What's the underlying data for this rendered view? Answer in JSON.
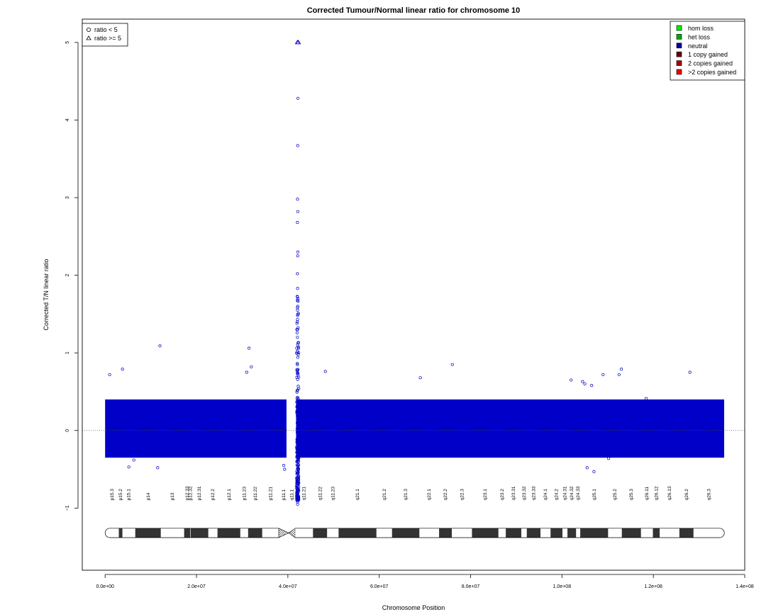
{
  "chart_data": {
    "type": "scatter",
    "title": "Corrected Tumour/Normal linear ratio for chromosome  10",
    "xlabel": "Chromosome Position",
    "ylabel": "Corrected T/N linear ratio",
    "xlim": [
      -5000000,
      140000000
    ],
    "ylim": [
      -1.8,
      5.3
    ],
    "x_ticks": [
      {
        "value": 0,
        "label": "0.0e+00"
      },
      {
        "value": 20000000,
        "label": "2.0e+07"
      },
      {
        "value": 40000000,
        "label": "4.0e+07"
      },
      {
        "value": 60000000,
        "label": "6.0e+07"
      },
      {
        "value": 80000000,
        "label": "8.0e+07"
      },
      {
        "value": 100000000,
        "label": "1.0e+08"
      },
      {
        "value": 120000000,
        "label": "1.2e+08"
      },
      {
        "value": 140000000,
        "label": "1.4e+08"
      }
    ],
    "y_ticks": [
      {
        "value": -1,
        "label": "−1"
      },
      {
        "value": 0,
        "label": "0"
      },
      {
        "value": 1,
        "label": "1"
      },
      {
        "value": 2,
        "label": "2"
      },
      {
        "value": 3,
        "label": "3"
      },
      {
        "value": 4,
        "label": "4"
      },
      {
        "value": 5,
        "label": "5"
      }
    ],
    "reference_line": {
      "y": 0,
      "style": "dotted"
    },
    "point_color": "#0000c8",
    "shape_legend": {
      "position": "top-left",
      "entries": [
        {
          "symbol": "circle",
          "label": "ratio < 5"
        },
        {
          "symbol": "triangle",
          "label": "ratio >= 5"
        }
      ]
    },
    "color_legend": {
      "position": "top-right",
      "entries": [
        {
          "label": "hom loss",
          "color": "#00ee00"
        },
        {
          "label": "het loss",
          "color": "#00aa00"
        },
        {
          "label": "neutral",
          "color": "#0000a0"
        },
        {
          "label": "1 copy gained",
          "color": "#660000"
        },
        {
          "label": "2 copies gained",
          "color": "#aa0000"
        },
        {
          "label": ">2 copies gained",
          "color": "#ee0000"
        }
      ]
    },
    "series": [
      {
        "segments": [
          {
            "x_start": 0,
            "x_end": 39700000,
            "median": 0.0,
            "lo": -0.35,
            "hi": 0.4
          },
          {
            "x_start": 41800000,
            "x_end": 135500000,
            "median": 0.0,
            "lo": -0.35,
            "hi": 0.4
          }
        ],
        "outliers": [
          {
            "x": 42300000,
            "y": 5.0,
            "symbol": "triangle"
          },
          {
            "x": 42100000,
            "y": 5.0,
            "symbol": "triangle"
          },
          {
            "x": 42200000,
            "y": 4.28
          },
          {
            "x": 42150000,
            "y": 3.67
          },
          {
            "x": 42120000,
            "y": 2.98
          },
          {
            "x": 42180000,
            "y": 2.82
          },
          {
            "x": 42090000,
            "y": 2.68
          },
          {
            "x": 42200000,
            "y": 2.3
          },
          {
            "x": 42150000,
            "y": 2.25
          },
          {
            "x": 42100000,
            "y": 2.02
          },
          {
            "x": 42130000,
            "y": 1.83
          },
          {
            "x": 42080000,
            "y": 1.72
          },
          {
            "x": 42160000,
            "y": 1.6
          },
          {
            "x": 42110000,
            "y": 1.55
          },
          {
            "x": 42140000,
            "y": 1.48
          },
          {
            "x": 42060000,
            "y": 1.4
          },
          {
            "x": 42120000,
            "y": 1.3
          },
          {
            "x": 42100000,
            "y": 1.2
          },
          {
            "x": 42150000,
            "y": 1.1
          },
          {
            "x": 42080000,
            "y": -0.75
          },
          {
            "x": 42100000,
            "y": -0.85
          },
          {
            "x": 42120000,
            "y": -0.92
          },
          {
            "x": 42130000,
            "y": -0.95
          },
          {
            "x": 12000000,
            "y": 1.09
          },
          {
            "x": 31500000,
            "y": 1.06
          },
          {
            "x": 31000000,
            "y": 0.75
          },
          {
            "x": 32000000,
            "y": 0.82
          },
          {
            "x": 1000000,
            "y": 0.72
          },
          {
            "x": 3800000,
            "y": 0.79
          },
          {
            "x": 76000000,
            "y": 0.85
          },
          {
            "x": 48200000,
            "y": 0.76
          },
          {
            "x": 113000000,
            "y": 0.79
          },
          {
            "x": 112500000,
            "y": 0.72
          },
          {
            "x": 109000000,
            "y": 0.72
          },
          {
            "x": 128000000,
            "y": 0.75
          },
          {
            "x": 69000000,
            "y": 0.68
          },
          {
            "x": 102000000,
            "y": 0.65
          },
          {
            "x": 104500000,
            "y": 0.63
          },
          {
            "x": 105000000,
            "y": 0.6
          },
          {
            "x": 106500000,
            "y": 0.58
          },
          {
            "x": 105500000,
            "y": -0.48
          },
          {
            "x": 107000000,
            "y": -0.53
          },
          {
            "x": 39300000,
            "y": -0.5
          },
          {
            "x": 39100000,
            "y": -0.45
          },
          {
            "x": 5200000,
            "y": -0.47
          },
          {
            "x": 11500000,
            "y": -0.48
          }
        ]
      }
    ],
    "ideogram": {
      "bands": [
        {
          "name": "p15.3",
          "start": 0,
          "end": 3000000,
          "stain": "gneg"
        },
        {
          "name": "p15.2",
          "start": 3000000,
          "end": 3800000,
          "stain": "gpos50"
        },
        {
          "name": "p15.1",
          "start": 3800000,
          "end": 6600000,
          "stain": "gneg"
        },
        {
          "name": "p14",
          "start": 6600000,
          "end": 12200000,
          "stain": "gpos75"
        },
        {
          "name": "p13",
          "start": 12200000,
          "end": 17300000,
          "stain": "gneg"
        },
        {
          "name": "p12.33",
          "start": 17300000,
          "end": 18600000,
          "stain": "gpos75"
        },
        {
          "name": "p12.32",
          "start": 18600000,
          "end": 18700000,
          "stain": "gneg"
        },
        {
          "name": "p12.31",
          "start": 18700000,
          "end": 22600000,
          "stain": "gpos75"
        },
        {
          "name": "p12.2",
          "start": 22600000,
          "end": 24600000,
          "stain": "gneg"
        },
        {
          "name": "p12.1",
          "start": 24600000,
          "end": 29600000,
          "stain": "gpos50"
        },
        {
          "name": "p11.23",
          "start": 29600000,
          "end": 31300000,
          "stain": "gneg"
        },
        {
          "name": "p11.22",
          "start": 31300000,
          "end": 34400000,
          "stain": "gpos25"
        },
        {
          "name": "p11.21",
          "start": 34400000,
          "end": 38000000,
          "stain": "gneg"
        },
        {
          "name": "p11.1",
          "start": 38000000,
          "end": 40200000,
          "stain": "acen"
        },
        {
          "name": "q11.1",
          "start": 40200000,
          "end": 41600000,
          "stain": "acen"
        },
        {
          "name": "q11.21",
          "start": 41600000,
          "end": 45500000,
          "stain": "gneg"
        },
        {
          "name": "q11.22",
          "start": 45500000,
          "end": 48600000,
          "stain": "gpos25"
        },
        {
          "name": "q11.23",
          "start": 48600000,
          "end": 51100000,
          "stain": "gneg"
        },
        {
          "name": "q21.1",
          "start": 51100000,
          "end": 59400000,
          "stain": "gpos100"
        },
        {
          "name": "q21.2",
          "start": 59400000,
          "end": 62800000,
          "stain": "gneg"
        },
        {
          "name": "q21.3",
          "start": 62800000,
          "end": 68800000,
          "stain": "gpos100"
        },
        {
          "name": "q22.1",
          "start": 68800000,
          "end": 73100000,
          "stain": "gneg"
        },
        {
          "name": "q22.2",
          "start": 73100000,
          "end": 75900000,
          "stain": "gpos50"
        },
        {
          "name": "q22.3",
          "start": 75900000,
          "end": 80300000,
          "stain": "gneg"
        },
        {
          "name": "q23.1",
          "start": 80300000,
          "end": 86100000,
          "stain": "gpos100"
        },
        {
          "name": "q23.2",
          "start": 86100000,
          "end": 87700000,
          "stain": "gneg"
        },
        {
          "name": "q23.31",
          "start": 87700000,
          "end": 91100000,
          "stain": "gpos75"
        },
        {
          "name": "q23.32",
          "start": 91100000,
          "end": 92300000,
          "stain": "gneg"
        },
        {
          "name": "q23.33",
          "start": 92300000,
          "end": 95300000,
          "stain": "gpos50"
        },
        {
          "name": "q24.1",
          "start": 95300000,
          "end": 97500000,
          "stain": "gneg"
        },
        {
          "name": "q24.2",
          "start": 97500000,
          "end": 100100000,
          "stain": "gpos50"
        },
        {
          "name": "q24.31",
          "start": 100100000,
          "end": 101200000,
          "stain": "gneg"
        },
        {
          "name": "q24.32",
          "start": 101200000,
          "end": 103100000,
          "stain": "gpos25"
        },
        {
          "name": "q24.33",
          "start": 103100000,
          "end": 104000000,
          "stain": "gneg"
        },
        {
          "name": "q25.1",
          "start": 104000000,
          "end": 110100000,
          "stain": "gpos100"
        },
        {
          "name": "q25.2",
          "start": 110100000,
          "end": 113100000,
          "stain": "gneg"
        },
        {
          "name": "q25.3",
          "start": 113100000,
          "end": 117300000,
          "stain": "gpos75"
        },
        {
          "name": "q26.11",
          "start": 117300000,
          "end": 119900000,
          "stain": "gneg"
        },
        {
          "name": "q26.12",
          "start": 119900000,
          "end": 121400000,
          "stain": "gpos50"
        },
        {
          "name": "q26.13",
          "start": 121400000,
          "end": 125700000,
          "stain": "gneg"
        },
        {
          "name": "q26.2",
          "start": 125700000,
          "end": 128800000,
          "stain": "gpos50"
        },
        {
          "name": "q26.3",
          "start": 128800000,
          "end": 135534747,
          "stain": "gneg"
        }
      ]
    }
  }
}
